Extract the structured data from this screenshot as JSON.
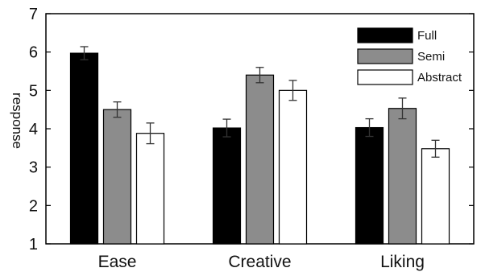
{
  "chart_data": {
    "type": "bar",
    "categories": [
      "Ease",
      "Creative",
      "Liking"
    ],
    "series": [
      {
        "name": "Full",
        "color": "#000000",
        "values": [
          5.97,
          4.02,
          4.03
        ],
        "errors": [
          0.17,
          0.23,
          0.23
        ]
      },
      {
        "name": "Semi",
        "color": "#8c8c8c",
        "values": [
          4.5,
          5.4,
          4.53
        ],
        "errors": [
          0.2,
          0.2,
          0.27
        ]
      },
      {
        "name": "Abstract",
        "color": "#ffffff",
        "values": [
          3.88,
          5.0,
          3.48
        ],
        "errors": [
          0.27,
          0.26,
          0.22
        ]
      }
    ],
    "ylabel": "response",
    "ylim": [
      1,
      7
    ],
    "yticks": [
      "1",
      "2",
      "3",
      "4",
      "5",
      "6",
      "7"
    ],
    "grid": false,
    "legend_position": "top-right"
  }
}
